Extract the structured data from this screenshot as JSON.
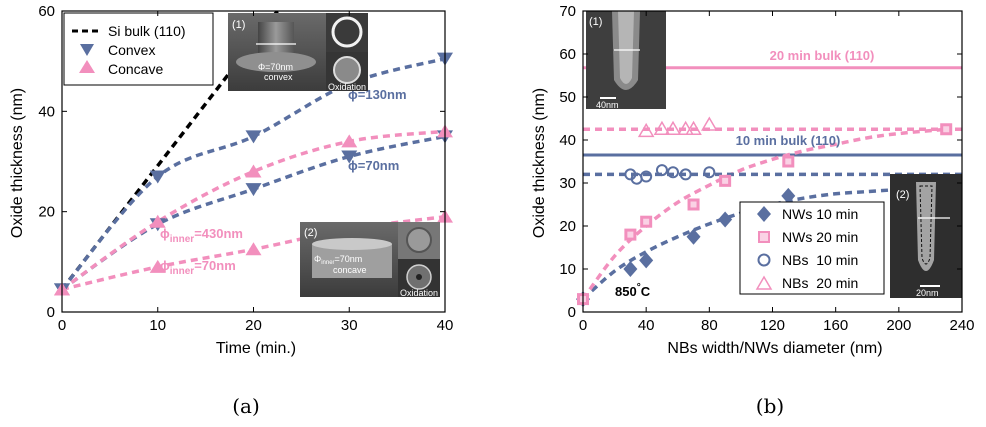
{
  "chart_data": [
    {
      "type": "scatter",
      "panel": "(a)",
      "xlabel": "Time (min.)",
      "ylabel": "Oxide thickness (nm)",
      "xlim": [
        0,
        40
      ],
      "ylim": [
        0,
        60
      ],
      "xticks": [
        "0",
        "10",
        "20",
        "30",
        "40"
      ],
      "yticks": [
        "0",
        "20",
        "40",
        "60"
      ],
      "legend": {
        "placement": "top-left",
        "entries": [
          "Si bulk (110)",
          "Convex",
          "Concave"
        ]
      },
      "series": [
        {
          "name": "Si bulk (110)",
          "kind": "fit",
          "color": "#000000",
          "x": [
            0,
            22.5
          ],
          "y": [
            4.5,
            60
          ]
        },
        {
          "name": "Convex",
          "marker": "triangle-down",
          "color": "#5a6fa0",
          "subset": "φ=130nm",
          "x": [
            0,
            10,
            20,
            30,
            40
          ],
          "y": [
            4.5,
            27,
            35,
            45.5,
            50.5
          ]
        },
        {
          "name": "Convex",
          "marker": "triangle-down",
          "color": "#5a6fa0",
          "subset": "φ=70nm",
          "x": [
            0,
            10,
            20,
            30,
            40
          ],
          "y": [
            4.5,
            17.5,
            24.5,
            31,
            35
          ]
        },
        {
          "name": "Concave",
          "marker": "triangle-up",
          "color": "#f28fbd",
          "subset": "φinner=430nm",
          "x": [
            0,
            10,
            20,
            30,
            40
          ],
          "y": [
            4.5,
            18,
            28,
            34,
            36
          ]
        },
        {
          "name": "Concave",
          "marker": "triangle-up",
          "color": "#f28fbd",
          "subset": "φinner=70nm",
          "x": [
            0,
            10,
            20,
            30,
            40
          ],
          "y": [
            4.5,
            9,
            12.5,
            16.5,
            19
          ]
        }
      ],
      "annotations": [
        {
          "text": "ϕ=130nm",
          "color": "#5a6fa0"
        },
        {
          "text": "ϕ=70nm",
          "color": "#5a6fa0"
        },
        {
          "text_main": "ϕ",
          "sub": "inner",
          "rest": "=430nm",
          "color": "#f28fbd"
        },
        {
          "text_main": "ϕ",
          "sub": "inner",
          "rest": "=70nm",
          "color": "#f28fbd"
        }
      ],
      "insets": [
        {
          "label": "(1)",
          "text": [
            "Φ=70nm",
            "convex"
          ],
          "side_label": "Oxidation"
        },
        {
          "label": "(2)",
          "text_main": "Φ",
          "sub": "inner",
          "rest": "=70nm",
          "text2": "concave",
          "side_label": "Oxidation"
        }
      ]
    },
    {
      "type": "scatter",
      "panel": "(b)",
      "xlabel": "NBs width/NWs diameter (nm)",
      "ylabel": "Oxide thickness (nm)",
      "xlim": [
        0,
        240
      ],
      "ylim": [
        0,
        70
      ],
      "xticks": [
        "0",
        "40",
        "80",
        "120",
        "160",
        "200",
        "240"
      ],
      "yticks": [
        "0",
        "10",
        "20",
        "30",
        "40",
        "50",
        "60",
        "70"
      ],
      "legend": {
        "placement": "bottom-right",
        "entries": [
          "NWs 10 min",
          "NWs 20 min",
          "NBs  10 min",
          "NBs  20 min"
        ]
      },
      "reference_lines": [
        {
          "label": "20 min bulk (110)",
          "y": 56.8,
          "color": "#f28fbd"
        },
        {
          "label": "10 min bulk (110)",
          "y": 36.5,
          "color": "#5a6fa0"
        }
      ],
      "series": [
        {
          "name": "NWs 10 min",
          "marker": "diamond",
          "color": "#5a6fa0",
          "x": [
            0,
            30,
            40,
            70,
            90,
            130
          ],
          "y": [
            3,
            10,
            12,
            17.5,
            21.5,
            27
          ]
        },
        {
          "name": "NWs 20 min",
          "marker": "square",
          "color": "#f28fbd",
          "x": [
            0,
            30,
            40,
            70,
            90,
            130,
            230
          ],
          "y": [
            3,
            18,
            21,
            25,
            30.5,
            35,
            42.5
          ]
        },
        {
          "name": "NBs  10 min",
          "marker": "circle",
          "color": "#5a6fa0",
          "x": [
            30,
            34,
            40,
            50,
            57,
            65,
            80
          ],
          "y": [
            32,
            31,
            31.5,
            33,
            32.5,
            32,
            32.5
          ]
        },
        {
          "name": "NBs  20 min",
          "marker": "triangle-up",
          "color": "#f28fbd",
          "x": [
            40,
            50,
            57,
            65,
            70,
            80
          ],
          "y": [
            42,
            42.5,
            42.5,
            42.5,
            42.5,
            43.5
          ]
        }
      ],
      "fit_curves": [
        {
          "color": "#5a6fa0",
          "x": [
            0,
            20,
            40,
            60,
            80,
            100,
            120,
            140,
            160,
            180,
            200
          ],
          "y": [
            3,
            9.5,
            14,
            17.5,
            20.5,
            23,
            25,
            26.5,
            27.5,
            28,
            28.5
          ]
        },
        {
          "color": "#f28fbd",
          "x": [
            0,
            20,
            40,
            60,
            80,
            100,
            120,
            140,
            160,
            180,
            200,
            230
          ],
          "y": [
            3,
            13,
            20,
            25.5,
            29.5,
            33,
            35.5,
            37.5,
            39,
            40.5,
            41.5,
            42.5
          ]
        },
        {
          "color": "#5a6fa0",
          "x": [
            0,
            240
          ],
          "y": [
            32,
            32
          ]
        },
        {
          "color": "#f28fbd",
          "x": [
            0,
            240
          ],
          "y": [
            42.5,
            42.5
          ]
        }
      ],
      "annotations": [
        {
          "text": "850",
          "sup": "°",
          "rest": "C"
        }
      ],
      "insets": [
        {
          "label": "(1)",
          "scale": "40nm"
        },
        {
          "label": "(2)",
          "scale": "20nm"
        }
      ]
    }
  ],
  "captions": [
    "(a)",
    "(b)"
  ],
  "colors": {
    "blue": "#5a6fa0",
    "pink": "#f28fbd",
    "black": "#000000"
  }
}
